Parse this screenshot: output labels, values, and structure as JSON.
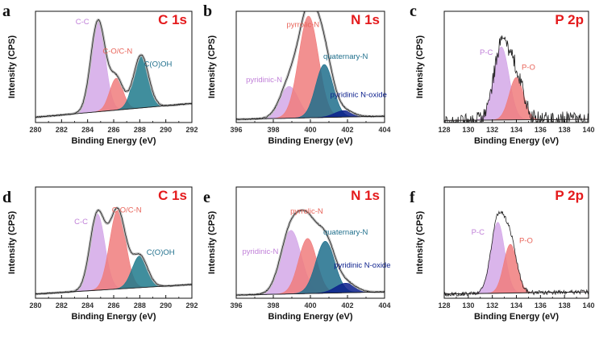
{
  "colors": {
    "title": "#e41a1c",
    "cc": "#d4a8e8",
    "co": "#f07d7d",
    "cooh": "#1f7a8c",
    "pyridinic": "#d4a8e8",
    "pyrrolic": "#f07d7d",
    "quaternary": "#1f6f8c",
    "oxide": "#0a1e8c",
    "pc": "#d4a8e8",
    "po": "#f07d7d",
    "label_cc": "#c07fd8",
    "label_co": "#e8645a",
    "label_cooh": "#1f6f8c",
    "label_oxide": "#0a1e8c",
    "raw": "#222222",
    "envelope": "#bdbdbd",
    "baseline": "#222222"
  },
  "chart_data": [
    {
      "type": "area",
      "panel": "a",
      "title": "C 1s",
      "xlabel": "Binding Energy (eV)",
      "ylabel": "Intensity (CPS)",
      "xlim": [
        280,
        292
      ],
      "xticks": [
        280,
        282,
        284,
        286,
        288,
        290,
        292
      ],
      "ylim": [
        0,
        1.05
      ],
      "background": [
        0.05,
        0.18
      ],
      "peaks": [
        {
          "name": "C-C",
          "center": 284.8,
          "fwhm": 1.3,
          "height": 0.86,
          "color": "cc",
          "label_color": "label_cc",
          "label_x": 283.6,
          "label_y": 0.93
        },
        {
          "name": "C-O/C-N",
          "center": 286.2,
          "fwhm": 1.2,
          "height": 0.3,
          "color": "co",
          "label_color": "label_co",
          "label_x": 286.3,
          "label_y": 0.65
        },
        {
          "name": "C(O)OH",
          "center": 288.1,
          "fwhm": 1.35,
          "height": 0.5,
          "color": "cooh",
          "label_color": "label_cooh",
          "label_x": 289.4,
          "label_y": 0.53
        }
      ],
      "noise": 0.006,
      "show_envelope": true
    },
    {
      "type": "area",
      "panel": "b",
      "title": "N 1s",
      "xlabel": "Binding Energy (eV)",
      "ylabel": "Intensity (CPS)",
      "xlim": [
        396,
        404
      ],
      "xticks": [
        396,
        398,
        400,
        402,
        404
      ],
      "ylim": [
        0,
        1.05
      ],
      "background": [
        0.03,
        0.06
      ],
      "peaks": [
        {
          "name": "pyridinic-N",
          "center": 398.85,
          "fwhm": 1.2,
          "height": 0.3,
          "color": "pyridinic",
          "label_color": "label_cc",
          "label_x": 397.5,
          "label_y": 0.38
        },
        {
          "name": "pyrrolic-N",
          "center": 399.9,
          "fwhm": 1.25,
          "height": 0.96,
          "color": "pyrrolic",
          "label_color": "label_co",
          "label_x": 399.6,
          "label_y": 0.9
        },
        {
          "name": "quaternary-N",
          "center": 400.75,
          "fwhm": 1.1,
          "height": 0.5,
          "color": "quaternary",
          "label_color": "label_cooh",
          "label_x": 401.9,
          "label_y": 0.6
        },
        {
          "name": "pyridinic N-oxide",
          "center": 401.8,
          "fwhm": 1.2,
          "height": 0.06,
          "color": "oxide",
          "label_color": "label_oxide",
          "label_x": 402.6,
          "label_y": 0.24
        }
      ],
      "noise": 0.006,
      "show_envelope": true
    },
    {
      "type": "area",
      "panel": "c",
      "title": "P 2p",
      "xlabel": "Binding Energy (eV)",
      "ylabel": "Intensity (CPS)",
      "xlim": [
        128,
        140
      ],
      "xticks": [
        128,
        130,
        132,
        134,
        136,
        138,
        140
      ],
      "ylim": [
        0,
        1.05
      ],
      "background": [
        0.02,
        0.03
      ],
      "peaks": [
        {
          "name": "P-C",
          "center": 132.75,
          "fwhm": 1.5,
          "height": 0.69,
          "color": "pc",
          "label_color": "label_cc",
          "label_x": 131.5,
          "label_y": 0.64
        },
        {
          "name": "P-O",
          "center": 134.0,
          "fwhm": 1.4,
          "height": 0.4,
          "color": "po",
          "label_color": "label_co",
          "label_x": 135.0,
          "label_y": 0.5
        }
      ],
      "noise": 0.075,
      "show_envelope": false
    },
    {
      "type": "area",
      "panel": "d",
      "title": "C 1s",
      "xlabel": "Binding Energy (eV)",
      "ylabel": "Intensity (CPS)",
      "xlim": [
        280,
        292
      ],
      "xticks": [
        280,
        282,
        284,
        286,
        288,
        290,
        292
      ],
      "ylim": [
        0,
        1.05
      ],
      "background": [
        0.04,
        0.13
      ],
      "peaks": [
        {
          "name": "C-C",
          "center": 284.75,
          "fwhm": 1.35,
          "height": 0.72,
          "color": "cc",
          "label_color": "label_cc",
          "label_x": 283.5,
          "label_y": 0.7
        },
        {
          "name": "C-O/C-N",
          "center": 286.3,
          "fwhm": 1.45,
          "height": 0.74,
          "color": "co",
          "label_color": "label_co",
          "label_x": 287.0,
          "label_y": 0.81
        },
        {
          "name": "C(O)OH",
          "center": 288.0,
          "fwhm": 1.4,
          "height": 0.3,
          "color": "cooh",
          "label_color": "label_cooh",
          "label_x": 289.6,
          "label_y": 0.41
        }
      ],
      "noise": 0.005,
      "show_envelope": true
    },
    {
      "type": "area",
      "panel": "e",
      "title": "N 1s",
      "xlabel": "Binding Energy (eV)",
      "ylabel": "Intensity (CPS)",
      "xlim": [
        396,
        404
      ],
      "xticks": [
        396,
        398,
        400,
        402,
        404
      ],
      "ylim": [
        0,
        1.05
      ],
      "background": [
        0.03,
        0.06
      ],
      "peaks": [
        {
          "name": "pyridinic-N",
          "center": 398.95,
          "fwhm": 1.3,
          "height": 0.6,
          "color": "pyridinic",
          "label_color": "label_cc",
          "label_x": 397.3,
          "label_y": 0.42
        },
        {
          "name": "pyrrolic-N",
          "center": 399.85,
          "fwhm": 1.15,
          "height": 0.52,
          "color": "pyrrolic",
          "label_color": "label_co",
          "label_x": 399.8,
          "label_y": 0.8
        },
        {
          "name": "quaternary-N",
          "center": 400.8,
          "fwhm": 1.2,
          "height": 0.49,
          "color": "quaternary",
          "label_color": "label_cooh",
          "label_x": 401.9,
          "label_y": 0.6
        },
        {
          "name": "pyridinic N-oxide",
          "center": 401.9,
          "fwhm": 1.3,
          "height": 0.09,
          "color": "oxide",
          "label_color": "label_oxide",
          "label_x": 402.8,
          "label_y": 0.29
        }
      ],
      "noise": 0.005,
      "show_envelope": true
    },
    {
      "type": "area",
      "panel": "f",
      "title": "P 2p",
      "xlabel": "Binding Energy (eV)",
      "ylabel": "Intensity (CPS)",
      "xlim": [
        128,
        140
      ],
      "xticks": [
        128,
        130,
        132,
        134,
        136,
        138,
        140
      ],
      "ylim": [
        0,
        1.05
      ],
      "background": [
        0.04,
        0.06
      ],
      "peaks": [
        {
          "name": "P-C",
          "center": 132.45,
          "fwhm": 1.35,
          "height": 0.67,
          "color": "pc",
          "label_color": "label_cc",
          "label_x": 130.8,
          "label_y": 0.6
        },
        {
          "name": "P-O",
          "center": 133.5,
          "fwhm": 1.3,
          "height": 0.46,
          "color": "po",
          "label_color": "label_co",
          "label_x": 134.8,
          "label_y": 0.52
        }
      ],
      "noise": 0.02,
      "show_envelope": false
    }
  ]
}
